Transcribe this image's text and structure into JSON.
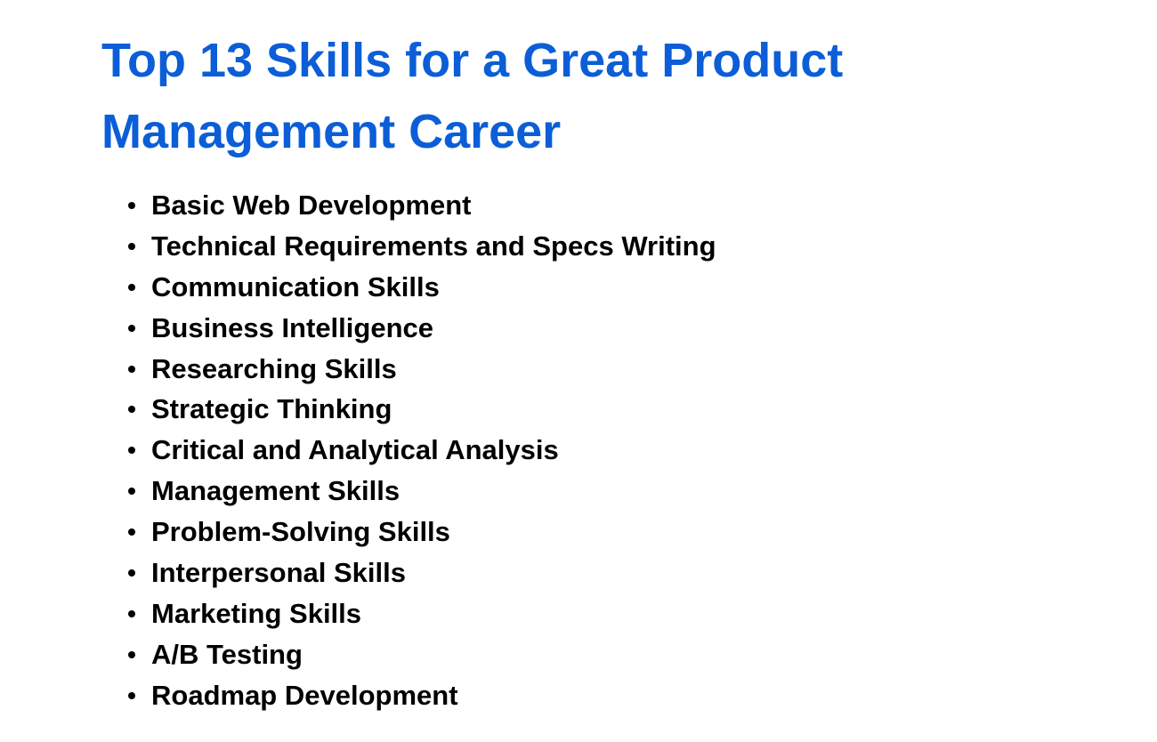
{
  "title_line_1": "Top 13 Skills for a Great Product",
  "title_line_2": "Management Career",
  "skills": [
    "Basic Web Development",
    "Technical Requirements and Specs Writing",
    "Communication Skills",
    "Business Intelligence",
    "Researching Skills",
    "Strategic Thinking",
    "Critical and Analytical Analysis",
    "Management Skills",
    "Problem-Solving Skills",
    "Interpersonal Skills",
    "Marketing Skills",
    "A/B Testing",
    "Roadmap Development"
  ],
  "colors": {
    "title": "#0b5ed7",
    "text": "#000000",
    "background": "#ffffff"
  }
}
